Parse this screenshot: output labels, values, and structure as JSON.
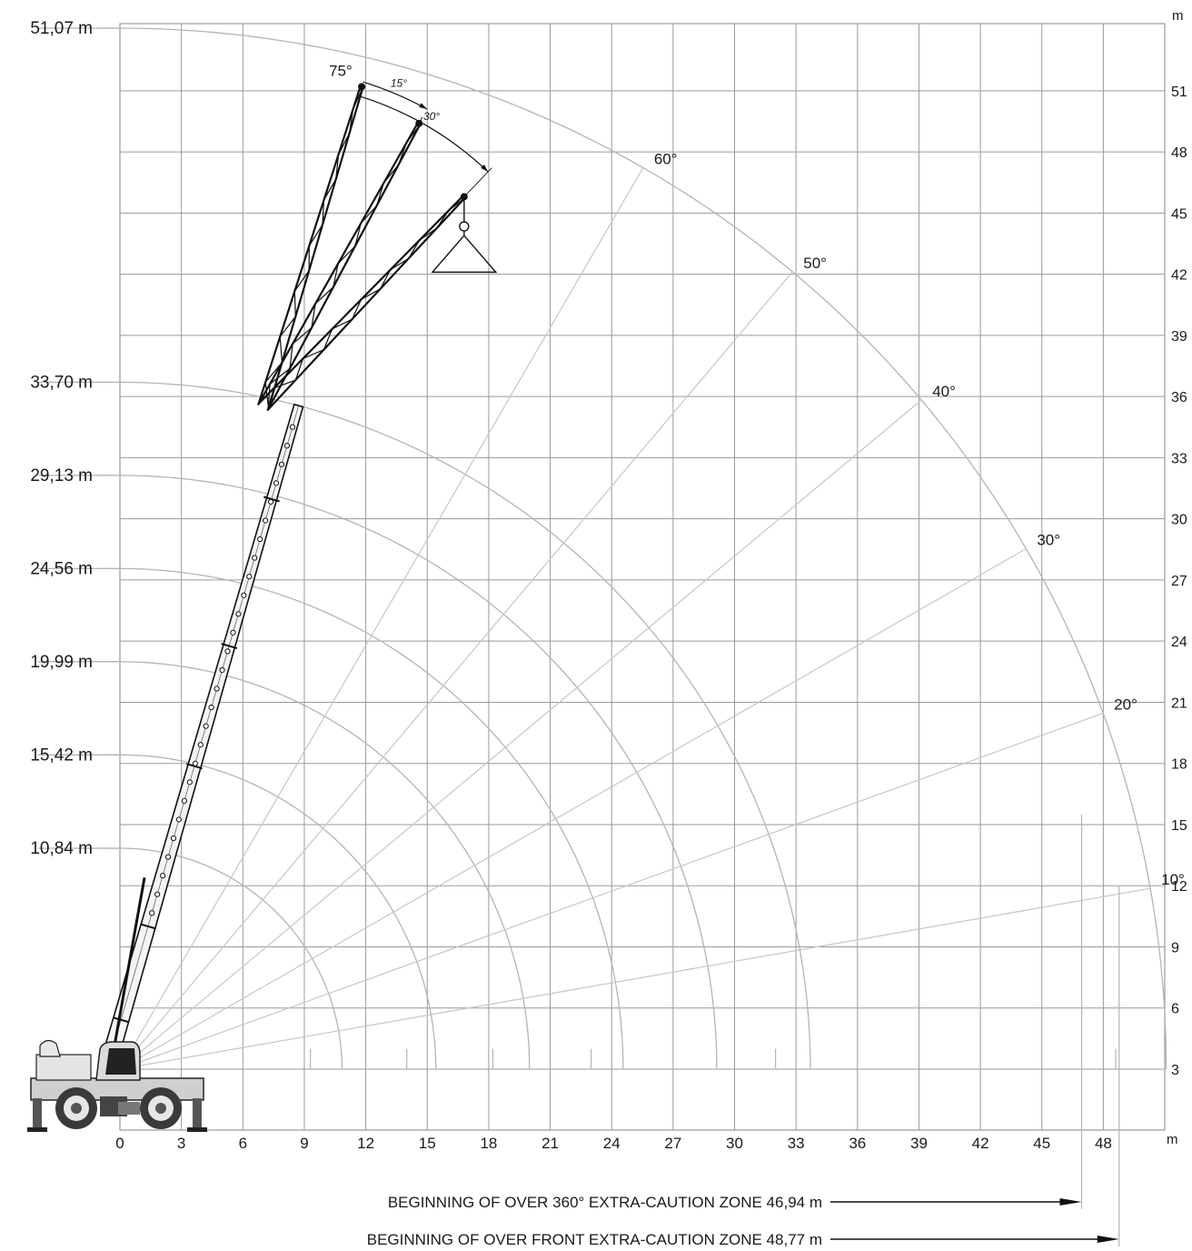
{
  "title": "",
  "colors": {
    "grid": "#9a9a9a",
    "arc": "#b4b4b4",
    "radial": "#c6c6c6",
    "boom": "#111111",
    "text": "#1a1a1a",
    "background": "#ffffff"
  },
  "chart_data": {
    "type": "diagram",
    "subject": "crane working range",
    "x_unit_label": "m",
    "y_unit_label": "m",
    "x_ticks": [
      0,
      3,
      6,
      9,
      12,
      15,
      18,
      21,
      24,
      27,
      30,
      33,
      36,
      39,
      42,
      45,
      48
    ],
    "y_ticks": [
      3,
      6,
      9,
      12,
      15,
      18,
      21,
      24,
      27,
      30,
      33,
      36,
      39,
      42,
      45,
      48,
      51
    ],
    "grid": true,
    "boom_pivot": [
      0,
      3
    ],
    "boom_lengths": [
      {
        "label": "10,84 m",
        "value": 10.84
      },
      {
        "label": "15,42 m",
        "value": 15.42
      },
      {
        "label": "19,99 m",
        "value": 19.99
      },
      {
        "label": "24,56 m",
        "value": 24.56
      },
      {
        "label": "29,13 m",
        "value": 29.13
      },
      {
        "label": "33,70 m",
        "value": 33.7
      },
      {
        "label": "51,07 m",
        "value": 51.07
      }
    ],
    "range_arcs": [
      {
        "radius": 10.84,
        "x_end": 9.3
      },
      {
        "radius": 15.42,
        "x_end": 14.0
      },
      {
        "radius": 19.99,
        "x_end": 18.2
      },
      {
        "radius": 24.56,
        "x_end": 23.0
      },
      {
        "radius": 29.13,
        "x_end": 27.0
      },
      {
        "radius": 33.7,
        "x_end": 32.0
      },
      {
        "radius": 51.07,
        "x_end": 48.6
      }
    ],
    "boom_angles": [
      {
        "label": "10°",
        "deg": 10
      },
      {
        "label": "20°",
        "deg": 20
      },
      {
        "label": "30°",
        "deg": 30
      },
      {
        "label": "40°",
        "deg": 40
      },
      {
        "label": "50°",
        "deg": 50
      },
      {
        "label": "60°",
        "deg": 60
      },
      {
        "label": "75°",
        "deg": 75
      }
    ],
    "main_boom": {
      "angle_deg": 75,
      "length": 33.7
    },
    "jib": {
      "base": [
        7,
        35.5
      ],
      "tips": [
        {
          "offset_label": "",
          "tip": [
            11.8,
            51.2
          ]
        },
        {
          "offset_label": "15°",
          "tip": [
            14.6,
            49.4
          ]
        },
        {
          "offset_label": "30°",
          "tip": [
            16.8,
            45.8
          ]
        }
      ],
      "hook": {
        "x": 16.8,
        "y_top": 43.9,
        "y_bottom": 42.1,
        "half_width": 1.55
      }
    },
    "caution_zones": [
      {
        "label": "BEGINNING OF OVER 360° EXTRA-CAUTION ZONE 46,94 m",
        "distance": 46.94
      },
      {
        "label": "BEGINNING OF OVER FRONT EXTRA-CAUTION ZONE 48,77 m",
        "distance": 48.77
      }
    ]
  }
}
